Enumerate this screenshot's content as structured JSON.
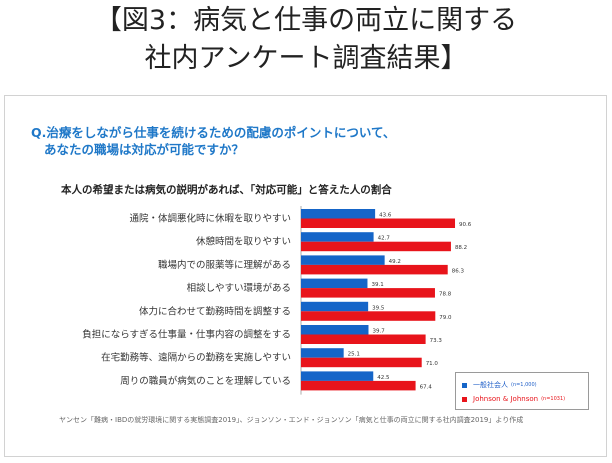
{
  "page": {
    "title_line1": "【図3：病気と仕事の両立に関する",
    "title_line2": "社内アンケート調査結果】"
  },
  "figure": {
    "question_line1": "Q.治療をしながら仕事を続けるための配慮のポイントについて、",
    "question_line2": "あなたの職場は対応が可能ですか？",
    "source": "ヤンセン「難病・IBDの就労環境に関する実態調査2019」、ジョンソン・エンド・ジョンソン「病気と仕事の両立に関する社内調査2019」より作成"
  },
  "legend": {
    "items": [
      {
        "label": "一般社会人",
        "n": "(n=1,000)",
        "color": "#1565c8"
      },
      {
        "label": "Johnson & Johnson",
        "n": "(n=1031)",
        "color": "#e8141b"
      }
    ]
  },
  "chart_data": {
    "type": "bar",
    "orientation": "horizontal",
    "title": "本人の希望または病気の説明があれば、「対応可能」と答えた人の割合",
    "categories": [
      "通院・体調悪化時に休暇を取りやすい",
      "休憩時間を取りやすい",
      "職場内での服薬等に理解がある",
      "相談しやすい環境がある",
      "体力に合わせて勤務時間を調整する",
      "負担にならすぎる仕事量・仕事内容の調整をする",
      "在宅勤務等、遠隔からの勤務を実施しやすい",
      "周りの職員が病気のことを理解している"
    ],
    "series": [
      {
        "name": "一般社会人",
        "color": "#1565c8",
        "values": [
          43.6,
          42.7,
          49.2,
          39.1,
          39.5,
          39.7,
          25.1,
          42.5
        ]
      },
      {
        "name": "Johnson & Johnson",
        "color": "#e8141b",
        "values": [
          90.6,
          88.2,
          86.3,
          78.8,
          79.0,
          73.3,
          71.0,
          67.4
        ]
      }
    ],
    "xlim": [
      0,
      100
    ],
    "grid": false,
    "legend_position": "bottom-right"
  }
}
